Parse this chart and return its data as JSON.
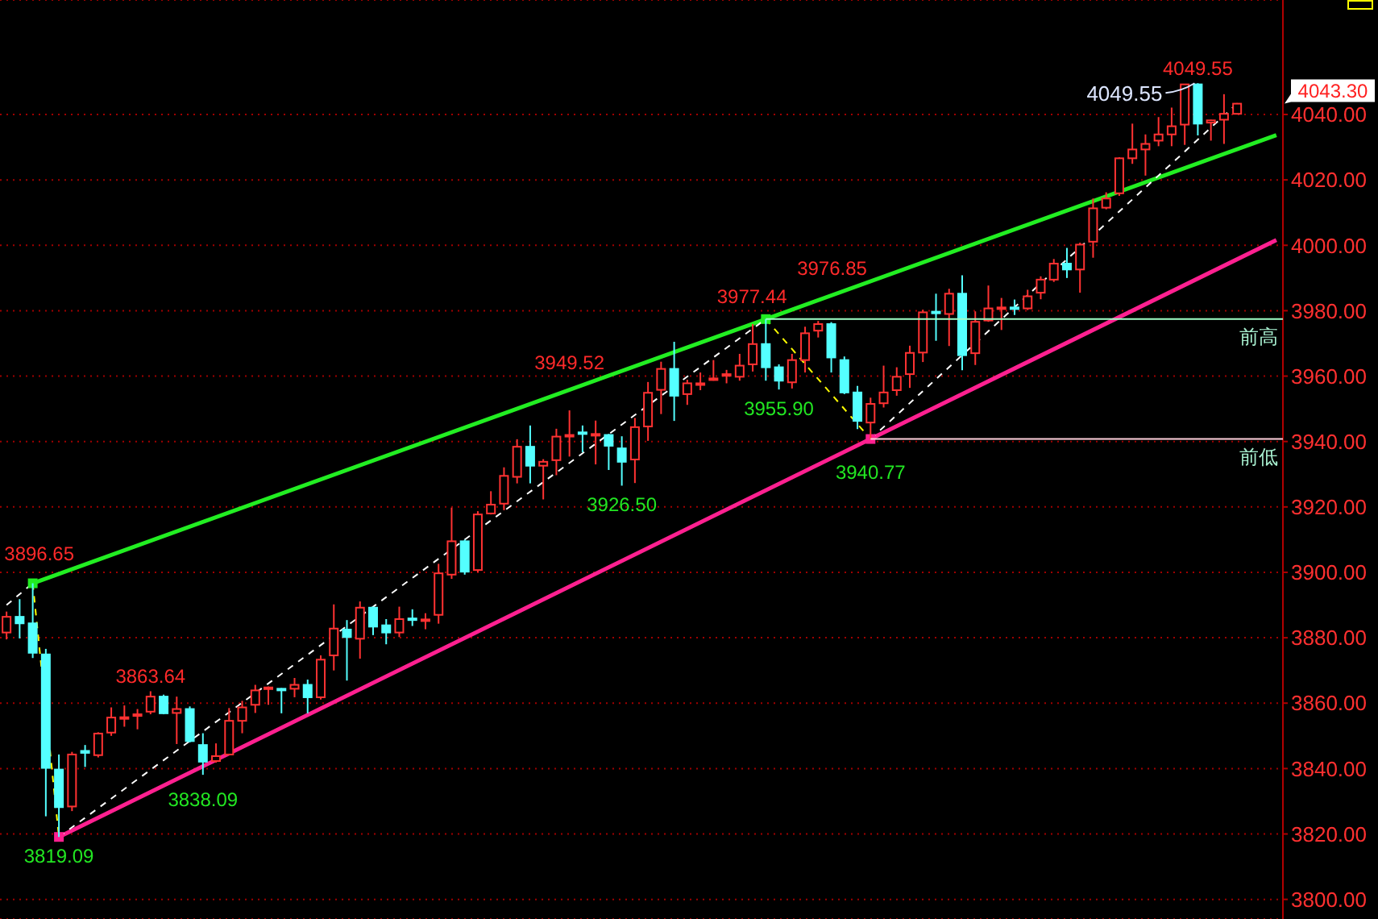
{
  "chart_data": {
    "type": "candlestick",
    "categories": [
      null,
      null,
      null,
      null,
      null,
      null,
      null,
      null,
      null,
      null,
      null,
      null,
      null,
      null,
      null,
      null,
      null,
      null,
      null,
      null,
      null,
      null,
      null,
      null,
      null,
      null,
      null,
      null,
      null,
      null,
      null,
      null,
      null,
      null,
      null,
      null,
      null,
      null,
      null,
      null,
      null,
      null,
      null,
      null,
      null,
      null,
      null,
      null,
      null,
      null,
      null,
      null,
      null,
      null,
      null,
      null,
      null,
      null,
      null,
      null,
      null,
      null,
      null,
      null,
      null,
      null,
      null,
      null,
      null,
      null,
      null,
      null,
      null,
      null,
      null,
      null,
      null,
      null,
      null,
      null,
      null,
      null,
      null,
      null,
      null,
      null,
      null,
      null,
      null,
      null,
      null,
      null,
      null,
      null,
      null,
      null,
      null,
      null
    ],
    "ohlc": [
      [
        3881.6,
        3888,
        3879.5,
        3886.4
      ],
      [
        3886.4,
        3891.8,
        3879.8,
        3884.4
      ],
      [
        3884.4,
        3896.65,
        3873.8,
        3875.4
      ],
      [
        3874.9,
        3876.6,
        3825.4,
        3840.2
      ],
      [
        3839.7,
        3844.3,
        3819.09,
        3828.2
      ],
      [
        3828.4,
        3845.1,
        3827,
        3844.3
      ],
      [
        3845.4,
        3847.2,
        3840.5,
        3844.8
      ],
      [
        3844.1,
        3851.1,
        3843.4,
        3850.7
      ],
      [
        3851,
        3858.7,
        3850,
        3855.6
      ],
      [
        3855.4,
        3859.3,
        3852.8,
        3855.7
      ],
      [
        3856.1,
        3858.2,
        3852,
        3856.6
      ],
      [
        3857.4,
        3863.64,
        3856.6,
        3862
      ],
      [
        3862,
        3862.6,
        3856.6,
        3856.9
      ],
      [
        3857,
        3862,
        3847.5,
        3858.2
      ],
      [
        3858.2,
        3859,
        3848,
        3848.4
      ],
      [
        3847.2,
        3850.8,
        3838.09,
        3842.1
      ],
      [
        3842.3,
        3847.7,
        3841.8,
        3843.8
      ],
      [
        3844.3,
        3858.5,
        3844.1,
        3854.6
      ],
      [
        3854.6,
        3860.7,
        3850.8,
        3858.7
      ],
      [
        3859.5,
        3865.6,
        3857,
        3863.9
      ],
      [
        3864.4,
        3865.1,
        3859.5,
        3864.8
      ],
      [
        3864.4,
        3864.6,
        3856.9,
        3864.1
      ],
      [
        3864.4,
        3867.7,
        3861.8,
        3865.6
      ],
      [
        3865.6,
        3867.2,
        3856.9,
        3861.8
      ],
      [
        3861.8,
        3874.6,
        3861.1,
        3873.3
      ],
      [
        3874.6,
        3890.2,
        3870,
        3882.8
      ],
      [
        3882.5,
        3885.4,
        3866.9,
        3880.2
      ],
      [
        3879.7,
        3891.1,
        3873.6,
        3889.2
      ],
      [
        3889.2,
        3889.5,
        3880.8,
        3883.4
      ],
      [
        3883.8,
        3885.7,
        3878,
        3881.6
      ],
      [
        3881.6,
        3889.5,
        3880.2,
        3885.7
      ],
      [
        3885.9,
        3888.7,
        3883.6,
        3885.6
      ],
      [
        3885.2,
        3887.5,
        3882.6,
        3885.6
      ],
      [
        3887,
        3902.6,
        3884.3,
        3899.7
      ],
      [
        3899.3,
        3919.8,
        3898,
        3909.5
      ],
      [
        3909.5,
        3910,
        3899.3,
        3900.2
      ],
      [
        3900.7,
        3918.7,
        3900,
        3917.7
      ],
      [
        3918,
        3924.8,
        3917.7,
        3920.7
      ],
      [
        3921,
        3932.1,
        3919,
        3929.5
      ],
      [
        3929.2,
        3940.7,
        3927.2,
        3938.4
      ],
      [
        3938.4,
        3944.9,
        3927.2,
        3932.6
      ],
      [
        3932.6,
        3934.6,
        3922.3,
        3933.8
      ],
      [
        3934.3,
        3943.9,
        3929.7,
        3941.5
      ],
      [
        3941.6,
        3949.52,
        3935.4,
        3942
      ],
      [
        3942.8,
        3944.9,
        3936.7,
        3942.3
      ],
      [
        3941.8,
        3946.4,
        3933,
        3942.3
      ],
      [
        3942,
        3942.3,
        3931.3,
        3938.7
      ],
      [
        3937.9,
        3941.6,
        3926.5,
        3933.8
      ],
      [
        3934.5,
        3947.2,
        3927.3,
        3944.4
      ],
      [
        3944.6,
        3958.2,
        3940.2,
        3954.9
      ],
      [
        3955.8,
        3964.4,
        3948.4,
        3962.2
      ],
      [
        3962.2,
        3970.5,
        3946.3,
        3954
      ],
      [
        3954.5,
        3958.9,
        3951.2,
        3957.8
      ],
      [
        3957.3,
        3961.1,
        3955.7,
        3957.8
      ],
      [
        3958.8,
        3964.9,
        3958.6,
        3959.3
      ],
      [
        3960.1,
        3961.9,
        3957.8,
        3960.6
      ],
      [
        3959.8,
        3966.8,
        3958.6,
        3963.2
      ],
      [
        3963.6,
        3975.9,
        3961.4,
        3969.8
      ],
      [
        3969.8,
        3977.44,
        3958.6,
        3962.7
      ],
      [
        3962.7,
        3963.6,
        3955.9,
        3958.6
      ],
      [
        3958.1,
        3966.8,
        3956.2,
        3964.9
      ],
      [
        3964.9,
        3975.1,
        3961.1,
        3973.1
      ],
      [
        3973.9,
        3976.85,
        3971.8,
        3975.9
      ],
      [
        3975.9,
        3976.5,
        3961.1,
        3965.7
      ],
      [
        3964.9,
        3966,
        3954.5,
        3955
      ],
      [
        3955,
        3957,
        3943.8,
        3946.3
      ],
      [
        3945.8,
        3953.4,
        3940.77,
        3951.5
      ],
      [
        3951.7,
        3963.2,
        3950.4,
        3955
      ],
      [
        3955.7,
        3962.7,
        3954,
        3959.8
      ],
      [
        3960.6,
        3969.3,
        3956.4,
        3967.1
      ],
      [
        3967.2,
        3980.3,
        3964.3,
        3979.5
      ],
      [
        3979.7,
        3985.2,
        3970.8,
        3979.3
      ],
      [
        3979,
        3986.7,
        3969.2,
        3985.2
      ],
      [
        3985.2,
        3990.8,
        3961.8,
        3966.4
      ],
      [
        3967,
        3979.8,
        3963.4,
        3976.6
      ],
      [
        3977,
        3987.7,
        3976.6,
        3980.7
      ],
      [
        3980.7,
        3983.9,
        3974.1,
        3981
      ],
      [
        3981,
        3983.4,
        3978.7,
        3980.5
      ],
      [
        3980.7,
        3986.4,
        3980.2,
        3984.4
      ],
      [
        3985.5,
        3990.5,
        3983.5,
        3989.5
      ],
      [
        3989.5,
        3995.8,
        3988.8,
        3994.4
      ],
      [
        3994.4,
        3999.2,
        3990,
        3992.6
      ],
      [
        3992.6,
        4000.8,
        3985.5,
        4000.2
      ],
      [
        4001.1,
        4014.3,
        3996.2,
        4011.3
      ],
      [
        4011.5,
        4016.2,
        4011,
        4014.3
      ],
      [
        4015.9,
        4026.9,
        4015.1,
        4026.6
      ],
      [
        4026.6,
        4037.2,
        4024.9,
        4029.3
      ],
      [
        4029.3,
        4033.9,
        4021.3,
        4031
      ],
      [
        4032,
        4039.2,
        4030.3,
        4033.9
      ],
      [
        4033.9,
        4042.1,
        4030.3,
        4036.4
      ],
      [
        4036.9,
        4049.3,
        4030.7,
        4049.2
      ],
      [
        4049.2,
        4049.55,
        4033.6,
        4037.2
      ],
      [
        4037.5,
        4038.4,
        4032,
        4038.2
      ],
      [
        4038.4,
        4046.2,
        4031,
        4040.2
      ],
      [
        4040.2,
        4043.5,
        4040,
        4043.3
      ],
      null,
      null,
      null
    ],
    "colors": [
      "#ff3232",
      "#54ffff",
      "#54ffff",
      "#54ffff",
      "#54ffff",
      "#ff3232",
      "#54ffff",
      "#ff3232",
      "#ff3232",
      "#ff3232",
      "#ff3232",
      "#ff3232",
      "#54ffff",
      "#ff3232",
      "#54ffff",
      "#54ffff",
      "#ff3232",
      "#ff3232",
      "#ff3232",
      "#ff3232",
      "#ff3232",
      "#54ffff",
      "#ff3232",
      "#54ffff",
      "#ff3232",
      "#ff3232",
      "#54ffff",
      "#ff3232",
      "#54ffff",
      "#54ffff",
      "#ff3232",
      "#54ffff",
      "#ff3232",
      "#ff3232",
      "#ff3232",
      "#54ffff",
      "#ff3232",
      "#ff3232",
      "#ff3232",
      "#ff3232",
      "#54ffff",
      "#ff3232",
      "#ff3232",
      "#ff3232",
      "#54ffff",
      "#ff3232",
      "#54ffff",
      "#54ffff",
      "#ff3232",
      "#ff3232",
      "#ff3232",
      "#54ffff",
      "#ff3232",
      "#ff3232",
      "#ff3232",
      "#ff3232",
      "#ff3232",
      "#ff3232",
      "#54ffff",
      "#54ffff",
      "#ff3232",
      "#ff3232",
      "#ff3232",
      "#54ffff",
      "#54ffff",
      "#54ffff",
      "#ff3232",
      "#ff3232",
      "#ff3232",
      "#ff3232",
      "#ff3232",
      "#54ffff",
      "#ff3232",
      "#54ffff",
      "#ff3232",
      "#ff3232",
      "#ff3232",
      "#54ffff",
      "#ff3232",
      "#ff3232",
      "#ff3232",
      "#54ffff",
      "#ff3232",
      "#ff3232",
      "#ff3232",
      "#ff3232",
      "#ff3232",
      "#ff3232",
      "#ff3232",
      "#ff3232",
      "#ff3232",
      "#54ffff",
      "#ff3232",
      "#ff3232",
      "#ff3232",
      null,
      null,
      null
    ],
    "series": [
      {
        "type": "line",
        "color": "#22ee22",
        "line_style": "solid",
        "values": [
          null,
          null,
          3896.65,
          null,
          null,
          null,
          null,
          null,
          null,
          null,
          null,
          null,
          null,
          null,
          null,
          null,
          null,
          null,
          null,
          null,
          null,
          null,
          null,
          null,
          null,
          null,
          null,
          null,
          null,
          null,
          null,
          null,
          null,
          null,
          null,
          null,
          null,
          null,
          null,
          null,
          null,
          null,
          null,
          null,
          null,
          null,
          null,
          null,
          null,
          null,
          null,
          null,
          null,
          null,
          null,
          null,
          null,
          null,
          3977.44,
          null,
          null,
          null,
          null,
          null,
          null,
          null,
          null,
          null,
          null,
          null,
          null,
          null,
          null,
          null,
          null,
          null,
          null,
          null,
          null,
          null,
          null,
          null,
          null,
          null,
          null,
          null,
          null,
          null,
          null,
          null,
          null,
          null,
          null,
          null,
          null,
          null,
          null,
          4033.7
        ]
      },
      {
        "type": "line",
        "color": "#ff2090",
        "line_style": "solid",
        "values": [
          null,
          null,
          null,
          null,
          3819.09,
          null,
          null,
          null,
          null,
          null,
          null,
          null,
          null,
          null,
          null,
          null,
          null,
          null,
          null,
          null,
          null,
          null,
          null,
          null,
          null,
          null,
          null,
          null,
          null,
          null,
          null,
          null,
          null,
          null,
          null,
          null,
          null,
          null,
          null,
          null,
          null,
          null,
          null,
          null,
          null,
          null,
          null,
          null,
          null,
          null,
          null,
          null,
          null,
          null,
          null,
          null,
          null,
          null,
          null,
          null,
          null,
          null,
          null,
          null,
          null,
          null,
          3940.77,
          null,
          null,
          null,
          null,
          null,
          null,
          null,
          null,
          null,
          null,
          null,
          null,
          null,
          null,
          null,
          null,
          null,
          null,
          null,
          null,
          null,
          null,
          null,
          null,
          null,
          null,
          null,
          null,
          null,
          null,
          4001.6
        ]
      },
      {
        "type": "line",
        "color": "#ffffff",
        "line_style": "dashed",
        "values": [
          3890,
          null,
          3896.65,
          null,
          null,
          null,
          null,
          null,
          null,
          null,
          null,
          null,
          null,
          null,
          null,
          null,
          null,
          null,
          null,
          null,
          null,
          null,
          null,
          null,
          null,
          null,
          null,
          null,
          null,
          null,
          null,
          null,
          null,
          null,
          null,
          null,
          null,
          null,
          null,
          null,
          null,
          null,
          null,
          null,
          null,
          null,
          null,
          null,
          null,
          null,
          null,
          null,
          null,
          null,
          null,
          null,
          null,
          null,
          null,
          null,
          null,
          null,
          null,
          null,
          null,
          null,
          null,
          null,
          null,
          null,
          null,
          null,
          null,
          null,
          null,
          null,
          null,
          null,
          null,
          null,
          null,
          null,
          null,
          null,
          null,
          null,
          null,
          null,
          null,
          null,
          null,
          null,
          null,
          null,
          null,
          null,
          null,
          null
        ]
      },
      {
        "type": "line",
        "color": "#ffff00",
        "line_style": "dashed",
        "values": [
          null,
          null,
          3896.65,
          null,
          3819.09,
          null,
          null,
          null,
          null,
          null,
          null,
          null,
          null,
          null,
          null,
          null,
          null,
          null,
          null,
          null,
          null,
          null,
          null,
          null,
          null,
          null,
          null,
          null,
          null,
          null,
          null,
          null,
          null,
          null,
          null,
          null,
          null,
          null,
          null,
          null,
          null,
          null,
          null,
          null,
          null,
          null,
          null,
          null,
          null,
          null,
          null,
          null,
          null,
          null,
          null,
          null,
          null,
          null,
          null,
          null,
          null,
          null,
          null,
          null,
          null,
          null,
          null,
          null,
          null,
          null,
          null,
          null,
          null,
          null,
          null,
          null,
          null,
          null,
          null,
          null,
          null,
          null,
          null,
          null,
          null,
          null,
          null,
          null,
          null,
          null,
          null,
          null,
          null,
          null,
          null,
          null,
          null,
          null
        ]
      },
      {
        "type": "line",
        "color": "#ffffff",
        "line_style": "dashed",
        "values": [
          null,
          null,
          null,
          null,
          3819.09,
          null,
          null,
          null,
          null,
          null,
          null,
          null,
          null,
          null,
          null,
          null,
          null,
          null,
          null,
          null,
          null,
          null,
          null,
          null,
          null,
          null,
          null,
          null,
          null,
          null,
          null,
          null,
          null,
          null,
          null,
          null,
          null,
          null,
          null,
          null,
          null,
          null,
          null,
          null,
          null,
          null,
          null,
          null,
          null,
          null,
          null,
          null,
          null,
          null,
          null,
          null,
          null,
          null,
          3977.44,
          null,
          null,
          null,
          null,
          null,
          null,
          null,
          null,
          null,
          null,
          null,
          null,
          null,
          null,
          null,
          null,
          null,
          null,
          null,
          null,
          null,
          null,
          null,
          null,
          null,
          null,
          null,
          null,
          null,
          null,
          null,
          null,
          null,
          null,
          null,
          null,
          null,
          null,
          null
        ]
      },
      {
        "type": "line",
        "color": "#ffff00",
        "line_style": "dashed",
        "values": [
          null,
          null,
          null,
          null,
          null,
          null,
          null,
          null,
          null,
          null,
          null,
          null,
          null,
          null,
          null,
          null,
          null,
          null,
          null,
          null,
          null,
          null,
          null,
          null,
          null,
          null,
          null,
          null,
          null,
          null,
          null,
          null,
          null,
          null,
          null,
          null,
          null,
          null,
          null,
          null,
          null,
          null,
          null,
          null,
          null,
          null,
          null,
          null,
          null,
          null,
          null,
          null,
          null,
          null,
          null,
          null,
          null,
          null,
          3977.44,
          null,
          null,
          null,
          null,
          null,
          null,
          null,
          3940.77,
          null,
          null,
          null,
          null,
          null,
          null,
          null,
          null,
          null,
          null,
          null,
          null,
          null,
          null,
          null,
          null,
          null,
          null,
          null,
          null,
          null,
          null,
          null,
          null,
          null,
          null,
          null,
          null,
          null,
          null,
          null
        ]
      },
      {
        "type": "line",
        "color": "#ffffff",
        "line_style": "dashed",
        "values": [
          null,
          null,
          null,
          null,
          null,
          null,
          null,
          null,
          null,
          null,
          null,
          null,
          null,
          null,
          null,
          null,
          null,
          null,
          null,
          null,
          null,
          null,
          null,
          null,
          null,
          null,
          null,
          null,
          null,
          null,
          null,
          null,
          null,
          null,
          null,
          null,
          null,
          null,
          null,
          null,
          null,
          null,
          null,
          null,
          null,
          null,
          null,
          null,
          null,
          null,
          null,
          null,
          null,
          null,
          null,
          null,
          null,
          null,
          null,
          null,
          null,
          null,
          null,
          null,
          null,
          null,
          3940.77,
          null,
          null,
          null,
          null,
          null,
          null,
          null,
          null,
          null,
          null,
          null,
          null,
          null,
          null,
          null,
          null,
          null,
          null,
          null,
          null,
          null,
          null,
          null,
          null,
          null,
          null,
          null,
          4043.3,
          null,
          null,
          null
        ]
      },
      {
        "type": "scatter",
        "marker": "square",
        "colors": [
          null,
          null,
          "#22ee22",
          null,
          "#ff2090",
          null,
          null,
          null,
          null,
          null,
          null,
          null,
          null,
          null,
          null,
          null,
          null,
          null,
          null,
          null,
          null,
          null,
          null,
          null,
          null,
          null,
          null,
          null,
          null,
          null,
          null,
          null,
          null,
          null,
          null,
          null,
          null,
          null,
          null,
          null,
          null,
          null,
          null,
          null,
          null,
          null,
          null,
          null,
          null,
          null,
          null,
          null,
          null,
          null,
          null,
          null,
          null,
          null,
          "#22ee22",
          null,
          null,
          null,
          null,
          null,
          null,
          null,
          "#ff2090",
          null,
          null,
          null,
          null,
          null,
          null,
          null,
          null,
          null,
          null,
          null,
          null,
          null,
          null,
          null,
          null,
          null,
          null,
          null,
          null,
          null,
          null,
          null,
          null,
          null,
          null,
          null,
          null,
          null,
          null,
          null
        ],
        "values": [
          null,
          null,
          3896.65,
          null,
          3819.09,
          null,
          null,
          null,
          null,
          null,
          null,
          null,
          null,
          null,
          null,
          null,
          null,
          null,
          null,
          null,
          null,
          null,
          null,
          null,
          null,
          null,
          null,
          null,
          null,
          null,
          null,
          null,
          null,
          null,
          null,
          null,
          null,
          null,
          null,
          null,
          null,
          null,
          null,
          null,
          null,
          null,
          null,
          null,
          null,
          null,
          null,
          null,
          null,
          null,
          null,
          null,
          null,
          null,
          3977.44,
          null,
          null,
          null,
          null,
          null,
          null,
          null,
          3940.77,
          null,
          null,
          null,
          null,
          null,
          null,
          null,
          null,
          null,
          null,
          null,
          null,
          null,
          null,
          null,
          null,
          null,
          null,
          null,
          null,
          null,
          null,
          null,
          null,
          null,
          null,
          null,
          null,
          null,
          null,
          null
        ]
      }
    ],
    "ylim": [
      3794,
      4075
    ],
    "yticks": [
      {
        "value": 3800,
        "label": "3800.00"
      },
      {
        "value": 3820,
        "label": "3820.00"
      },
      {
        "value": 3840,
        "label": "3840.00"
      },
      {
        "value": 3860,
        "label": "3860.00"
      },
      {
        "value": 3880,
        "label": "3880.00"
      },
      {
        "value": 3900,
        "label": "3900.00"
      },
      {
        "value": 3920,
        "label": "3920.00"
      },
      {
        "value": 3940,
        "label": "3940.00"
      },
      {
        "value": 3960,
        "label": "3960.00"
      },
      {
        "value": 3980,
        "label": "3980.00"
      },
      {
        "value": 4000,
        "label": "4000.00"
      },
      {
        "value": 4020,
        "label": "4020.00"
      },
      {
        "value": 4040,
        "label": "4040.00"
      }
    ],
    "ref_lines": [
      {
        "axis": "y",
        "value": 3977.44,
        "label": "前高",
        "color": "#a0ffc8"
      },
      {
        "axis": "y",
        "value": 3940.77,
        "label": "前低",
        "color": "#ffd0dc"
      }
    ],
    "annotations": [
      {
        "text": "3896.65",
        "y": 3896.65
      },
      {
        "text": "3819.09",
        "y": 3819.09
      },
      {
        "text": "3863.64",
        "y": 3863.64
      },
      {
        "text": "3838.09",
        "y": 3838.09
      },
      {
        "text": "3949.52",
        "y": 3949.52
      },
      {
        "text": "3926.50",
        "y": 3926.5
      },
      {
        "text": "3977.44",
        "y": 3977.44
      },
      {
        "text": "3955.90",
        "y": 3955.9
      },
      {
        "text": "3976.85",
        "y": 3976.85
      },
      {
        "text": "3940.77",
        "y": 3940.77
      },
      "4049.55",
      "4049.55",
      "4043.30"
    ],
    "grid": "y",
    "tick_labels": "y"
  }
}
